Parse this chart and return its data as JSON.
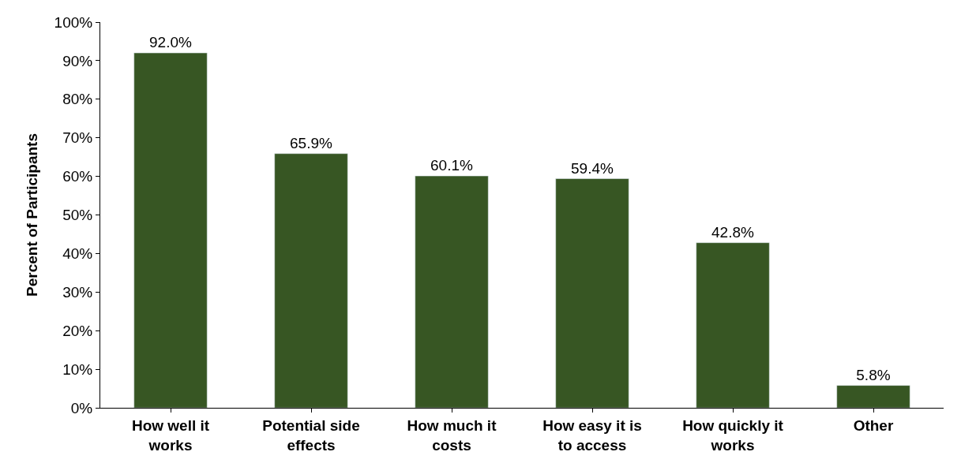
{
  "chart_data": {
    "type": "bar",
    "ylabel": "Percent of Participants",
    "categories": [
      "How well it\nworks",
      "Potential side\neffects",
      "How much it\ncosts",
      "How easy it is\nto access",
      "How quickly it\nworks",
      "Other"
    ],
    "values": [
      92.0,
      65.9,
      60.1,
      59.4,
      42.8,
      5.8
    ],
    "value_labels": [
      "92.0%",
      "65.9%",
      "60.1%",
      "59.4%",
      "42.8%",
      "5.8%"
    ],
    "color": "#375623",
    "ylim": [
      0,
      100
    ],
    "yticks": [
      {
        "value": 0,
        "label": "0%"
      },
      {
        "value": 10,
        "label": "10%"
      },
      {
        "value": 20,
        "label": "20%"
      },
      {
        "value": 30,
        "label": "30%"
      },
      {
        "value": 40,
        "label": "40%"
      },
      {
        "value": 50,
        "label": "50%"
      },
      {
        "value": 60,
        "label": "60%"
      },
      {
        "value": 70,
        "label": "70%"
      },
      {
        "value": 80,
        "label": "80%"
      },
      {
        "value": 90,
        "label": "90%"
      },
      {
        "value": 100,
        "label": "100%"
      }
    ],
    "grid": false
  }
}
